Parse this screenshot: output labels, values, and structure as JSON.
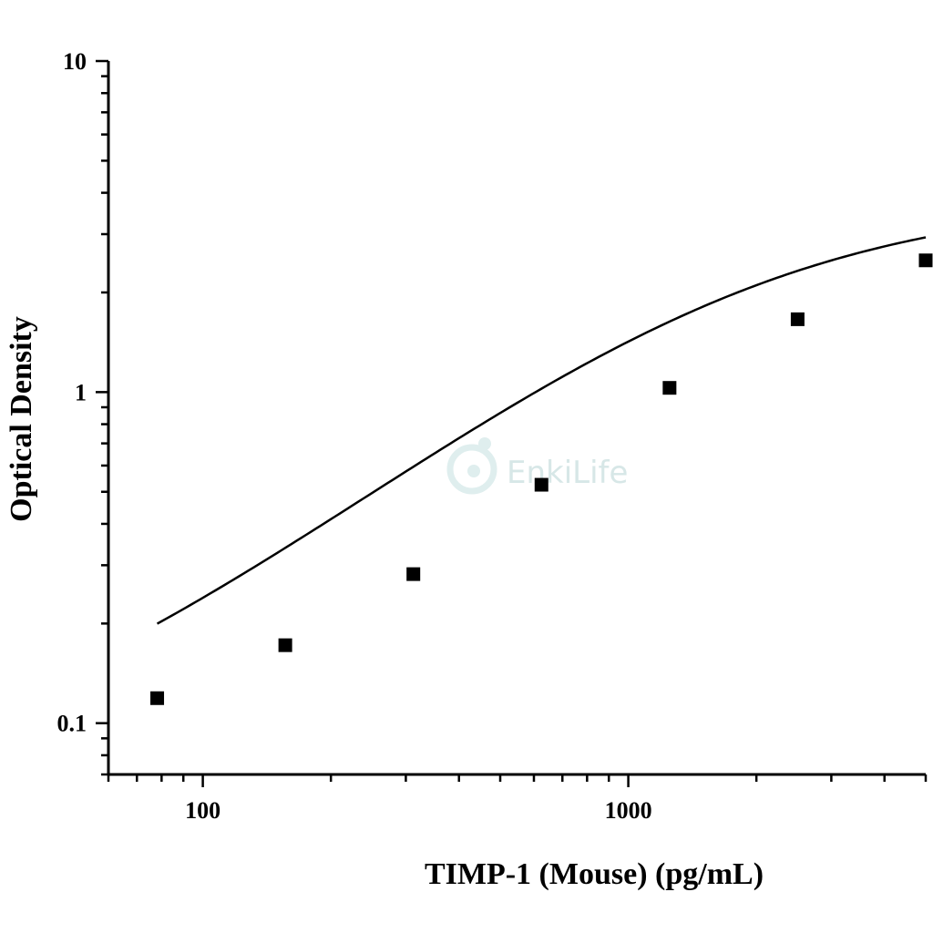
{
  "chart_data": {
    "type": "scatter",
    "xlabel": "TIMP-1 (Mouse) (pg/mL)",
    "ylabel": "Optical Density",
    "xscale": "log",
    "yscale": "log",
    "xlim": [
      60,
      5000
    ],
    "ylim": [
      0.07,
      10
    ],
    "xticks": [
      {
        "value": 100,
        "label": "100"
      },
      {
        "value": 1000,
        "label": "1000"
      }
    ],
    "yticks": [
      {
        "value": 0.1,
        "label": "0.1"
      },
      {
        "value": 1,
        "label": "1"
      },
      {
        "value": 10,
        "label": "10"
      }
    ],
    "grid": false,
    "legend": "none",
    "series": [
      {
        "marker": "square",
        "color": "#000000",
        "points": [
          {
            "x": 78.125,
            "y": 0.119
          },
          {
            "x": 156.25,
            "y": 0.172
          },
          {
            "x": 312.5,
            "y": 0.282
          },
          {
            "x": 625,
            "y": 0.525
          },
          {
            "x": 1250,
            "y": 1.03
          },
          {
            "x": 2500,
            "y": 1.66
          },
          {
            "x": 5000,
            "y": 2.5
          }
        ]
      }
    ],
    "fit_curve": {
      "type": "4PL",
      "color": "#000000",
      "min": 0.06,
      "max": 3.9,
      "ec50": 1770,
      "slope": 1.05
    }
  },
  "watermark": {
    "text": "EnkiLife",
    "color": "#d7e7e7"
  }
}
